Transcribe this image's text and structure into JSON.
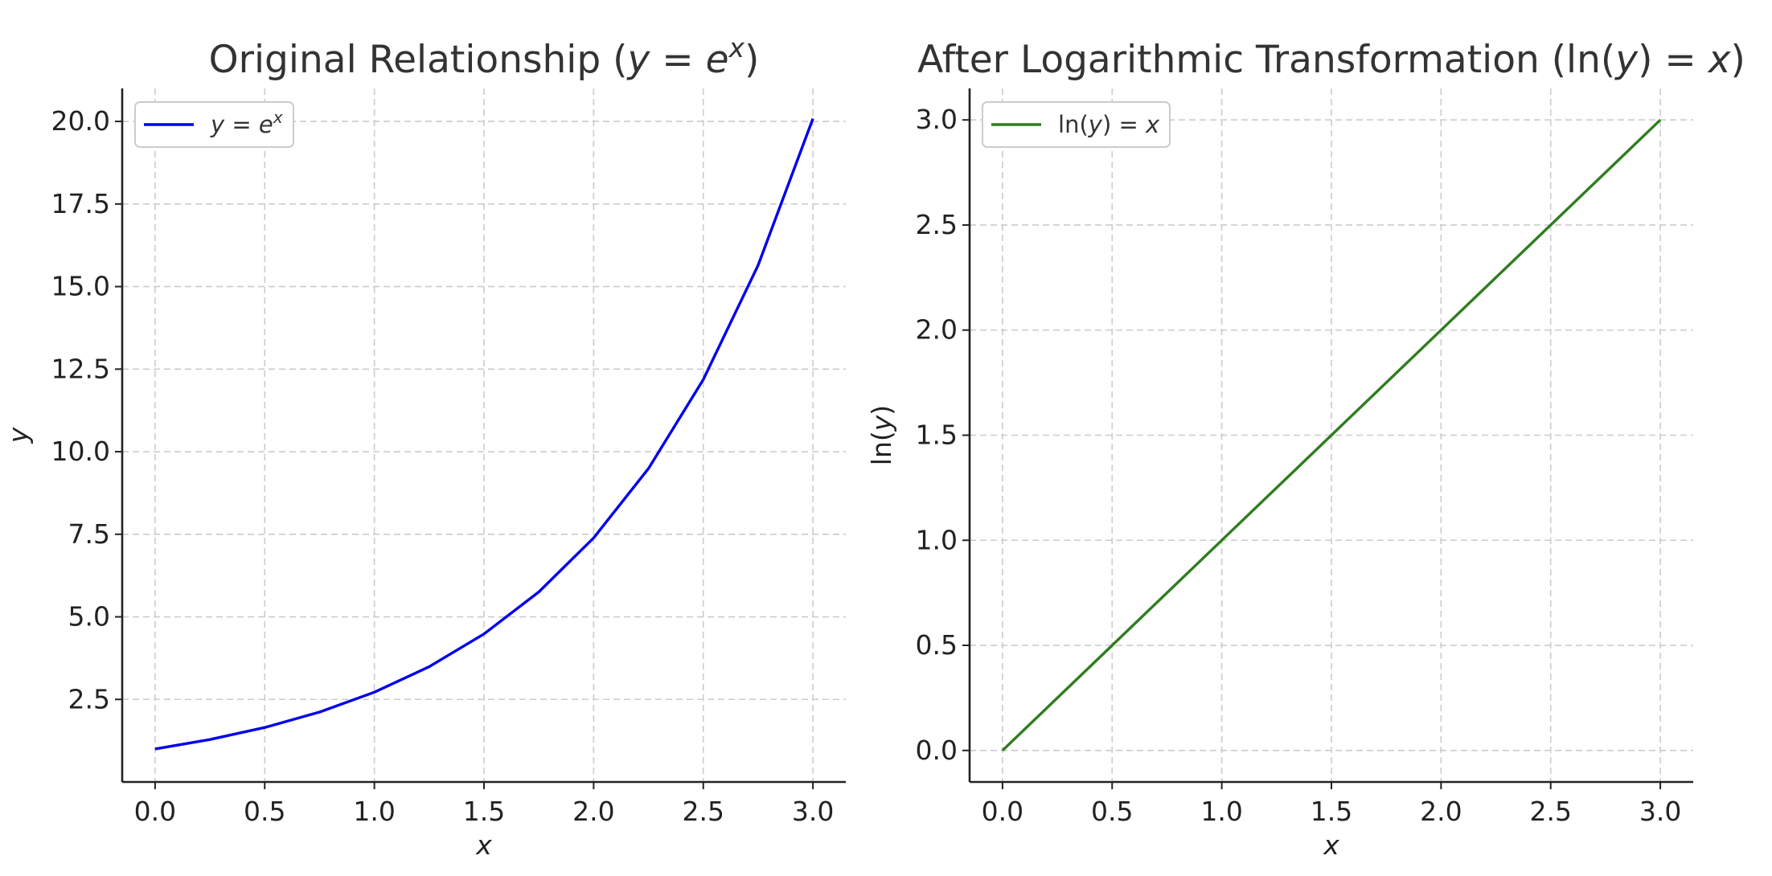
{
  "chart_data": [
    {
      "type": "line",
      "title": "Original Relationship (y = e^x)",
      "xlabel": "x",
      "ylabel": "y",
      "xlim": [
        -0.15,
        3.15
      ],
      "ylim": [
        0.0,
        21.0
      ],
      "xticks": [
        0.0,
        0.5,
        1.0,
        1.5,
        2.0,
        2.5,
        3.0
      ],
      "xtick_labels": [
        "0.0",
        "0.5",
        "1.0",
        "1.5",
        "2.0",
        "2.5",
        "3.0"
      ],
      "yticks": [
        2.5,
        5.0,
        7.5,
        10.0,
        12.5,
        15.0,
        17.5,
        20.0
      ],
      "ytick_labels": [
        "2.5",
        "5.0",
        "7.5",
        "10.0",
        "12.5",
        "15.0",
        "17.5",
        "20.0"
      ],
      "grid": true,
      "legend": "top-left",
      "series": [
        {
          "name": "y = e^x",
          "color": "#0000ee",
          "x": [
            0.0,
            0.25,
            0.5,
            0.75,
            1.0,
            1.25,
            1.5,
            1.75,
            2.0,
            2.25,
            2.5,
            2.75,
            3.0
          ],
          "y": [
            1.0,
            1.284,
            1.649,
            2.117,
            2.718,
            3.49,
            4.482,
            5.755,
            7.389,
            9.488,
            12.182,
            15.643,
            20.086
          ]
        }
      ]
    },
    {
      "type": "line",
      "title": "After Logarithmic Transformation (ln(y) = x)",
      "xlabel": "x",
      "ylabel": "ln(y)",
      "xlim": [
        -0.15,
        3.15
      ],
      "ylim": [
        -0.15,
        3.15
      ],
      "xticks": [
        0.0,
        0.5,
        1.0,
        1.5,
        2.0,
        2.5,
        3.0
      ],
      "xtick_labels": [
        "0.0",
        "0.5",
        "1.0",
        "1.5",
        "2.0",
        "2.5",
        "3.0"
      ],
      "yticks": [
        0.0,
        0.5,
        1.0,
        1.5,
        2.0,
        2.5,
        3.0
      ],
      "ytick_labels": [
        "0.0",
        "0.5",
        "1.0",
        "1.5",
        "2.0",
        "2.5",
        "3.0"
      ],
      "grid": true,
      "legend": "top-left",
      "series": [
        {
          "name": "ln(y) = x",
          "color": "#2e7d1f",
          "x": [
            0.0,
            0.5,
            1.0,
            1.5,
            2.0,
            2.5,
            3.0
          ],
          "y": [
            0.0,
            0.5,
            1.0,
            1.5,
            2.0,
            2.5,
            3.0
          ]
        }
      ]
    }
  ]
}
